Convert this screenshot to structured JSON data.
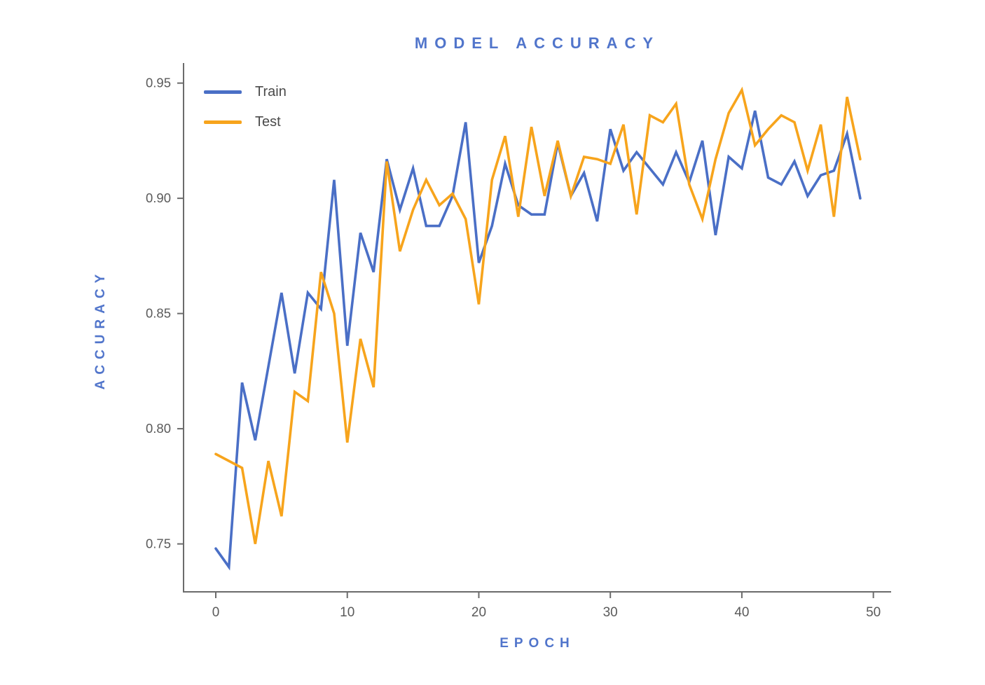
{
  "figure": {
    "title": "MODEL ACCURACY",
    "xlabel": "EPOCH",
    "ylabel": "ACCURACY"
  },
  "legend": {
    "position": "upper left",
    "items": [
      {
        "label": "Train",
        "color": "#4a6fc6"
      },
      {
        "label": "Test",
        "color": "#f7a41c"
      }
    ]
  },
  "colors": {
    "train_line": "#4a6fc6",
    "test_line": "#f7a41c",
    "accent_text": "#5175cb",
    "tick_text": "#5a5a5a",
    "legend_text": "#4a4a4a",
    "spine": "#6b6b6b",
    "background": "#ffffff"
  },
  "chart_data": {
    "type": "line",
    "title": "MODEL ACCURACY",
    "xlabel": "EPOCH",
    "ylabel": "ACCURACY",
    "grid": false,
    "legend_position": "upper left",
    "x_ticks": [
      0,
      10,
      20,
      30,
      40,
      50
    ],
    "y_ticks": [
      0.75,
      0.8,
      0.85,
      0.9,
      0.95
    ],
    "xlim": [
      -2.45,
      51.35
    ],
    "ylim": [
      0.7292,
      0.9581
    ],
    "x": [
      0,
      1,
      2,
      3,
      4,
      5,
      6,
      7,
      8,
      9,
      10,
      11,
      12,
      13,
      14,
      15,
      16,
      17,
      18,
      19,
      20,
      21,
      22,
      23,
      24,
      25,
      26,
      27,
      28,
      29,
      30,
      31,
      32,
      33,
      34,
      35,
      36,
      37,
      38,
      39,
      40,
      41,
      42,
      43,
      44,
      45,
      46,
      47,
      48,
      49
    ],
    "series": [
      {
        "name": "Train",
        "color": "#4a6fc6",
        "values": [
          0.748,
          0.74,
          0.82,
          0.795,
          0.827,
          0.859,
          0.824,
          0.859,
          0.852,
          0.908,
          0.836,
          0.885,
          0.868,
          0.917,
          0.895,
          0.913,
          0.888,
          0.888,
          0.901,
          0.933,
          0.872,
          0.888,
          0.915,
          0.897,
          0.893,
          0.893,
          0.924,
          0.901,
          0.911,
          0.89,
          0.93,
          0.912,
          0.92,
          0.913,
          0.906,
          0.92,
          0.907,
          0.925,
          0.884,
          0.918,
          0.913,
          0.938,
          0.909,
          0.906,
          0.916,
          0.901,
          0.91,
          0.912,
          0.928,
          0.9
        ]
      },
      {
        "name": "Test",
        "color": "#f7a41c",
        "values": [
          0.789,
          0.786,
          0.783,
          0.75,
          0.786,
          0.762,
          0.816,
          0.812,
          0.868,
          0.85,
          0.794,
          0.839,
          0.818,
          0.916,
          0.877,
          0.895,
          0.908,
          0.897,
          0.902,
          0.891,
          0.854,
          0.908,
          0.927,
          0.892,
          0.931,
          0.901,
          0.925,
          0.901,
          0.918,
          0.917,
          0.915,
          0.932,
          0.893,
          0.936,
          0.933,
          0.941,
          0.906,
          0.891,
          0.917,
          0.937,
          0.947,
          0.923,
          0.93,
          0.936,
          0.933,
          0.912,
          0.932,
          0.892,
          0.944,
          0.917
        ]
      }
    ]
  }
}
